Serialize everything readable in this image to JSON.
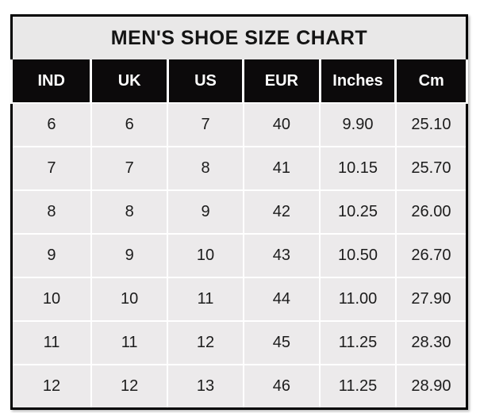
{
  "chart_data": {
    "type": "table",
    "title": "MEN'S SHOE SIZE CHART",
    "columns": [
      "IND",
      "UK",
      "US",
      "EUR",
      "Inches",
      "Cm"
    ],
    "rows": [
      [
        "6",
        "6",
        "7",
        "40",
        "9.90",
        "25.10"
      ],
      [
        "7",
        "7",
        "8",
        "41",
        "10.15",
        "25.70"
      ],
      [
        "8",
        "8",
        "9",
        "42",
        "10.25",
        "26.00"
      ],
      [
        "9",
        "9",
        "10",
        "43",
        "10.50",
        "26.70"
      ],
      [
        "10",
        "10",
        "11",
        "44",
        "11.00",
        "27.90"
      ],
      [
        "11",
        "11",
        "12",
        "45",
        "11.25",
        "28.30"
      ],
      [
        "12",
        "12",
        "13",
        "46",
        "11.25",
        "28.90"
      ]
    ],
    "layout": {
      "legend": "none",
      "grid": "white gridlines on light-gray cells"
    },
    "colors": {
      "outer_border": "#000000",
      "title_background": "#e9e8e8",
      "header_background": "#0c0a0b",
      "header_text": "#ffffff",
      "cell_background": "#eceaeb",
      "gridline": "#ffffff",
      "body_text": "#1c1c1c"
    }
  }
}
